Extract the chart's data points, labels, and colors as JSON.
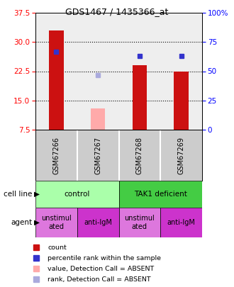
{
  "title": "GDS1467 / 1435366_at",
  "samples": [
    "GSM67266",
    "GSM67267",
    "GSM67268",
    "GSM67269"
  ],
  "ylim_left": [
    7.5,
    37.5
  ],
  "ylim_right": [
    0,
    100
  ],
  "yticks_left": [
    7.5,
    15.0,
    22.5,
    30.0,
    37.5
  ],
  "yticks_right": [
    0,
    25,
    50,
    75,
    100
  ],
  "bar_values": [
    33.0,
    null,
    24.0,
    22.5
  ],
  "bar_absent_values": [
    null,
    13.0,
    null,
    null
  ],
  "rank_values": [
    27.5,
    null,
    26.5,
    26.5
  ],
  "rank_absent_values": [
    null,
    21.5,
    null,
    null
  ],
  "bar_color": "#cc1111",
  "bar_absent_color": "#ffaaaa",
  "rank_color": "#3333cc",
  "rank_absent_color": "#aaaadd",
  "agent_labels": [
    "unstimul\nated",
    "anti-IgM",
    "unstimul\nated",
    "anti-IgM"
  ],
  "agent_colors": [
    "#dd77dd",
    "#cc33cc",
    "#dd77dd",
    "#cc33cc"
  ],
  "cell_line_control_color": "#aaffaa",
  "cell_line_tak1_color": "#44cc44",
  "bg_color": "#ffffff",
  "plot_bg_color": "#eeeeee",
  "sample_bg_color": "#cccccc",
  "bar_width": 0.35,
  "rank_marker_size": 5,
  "grid_color": "black",
  "grid_linestyle": ":",
  "grid_linewidth": 0.8
}
